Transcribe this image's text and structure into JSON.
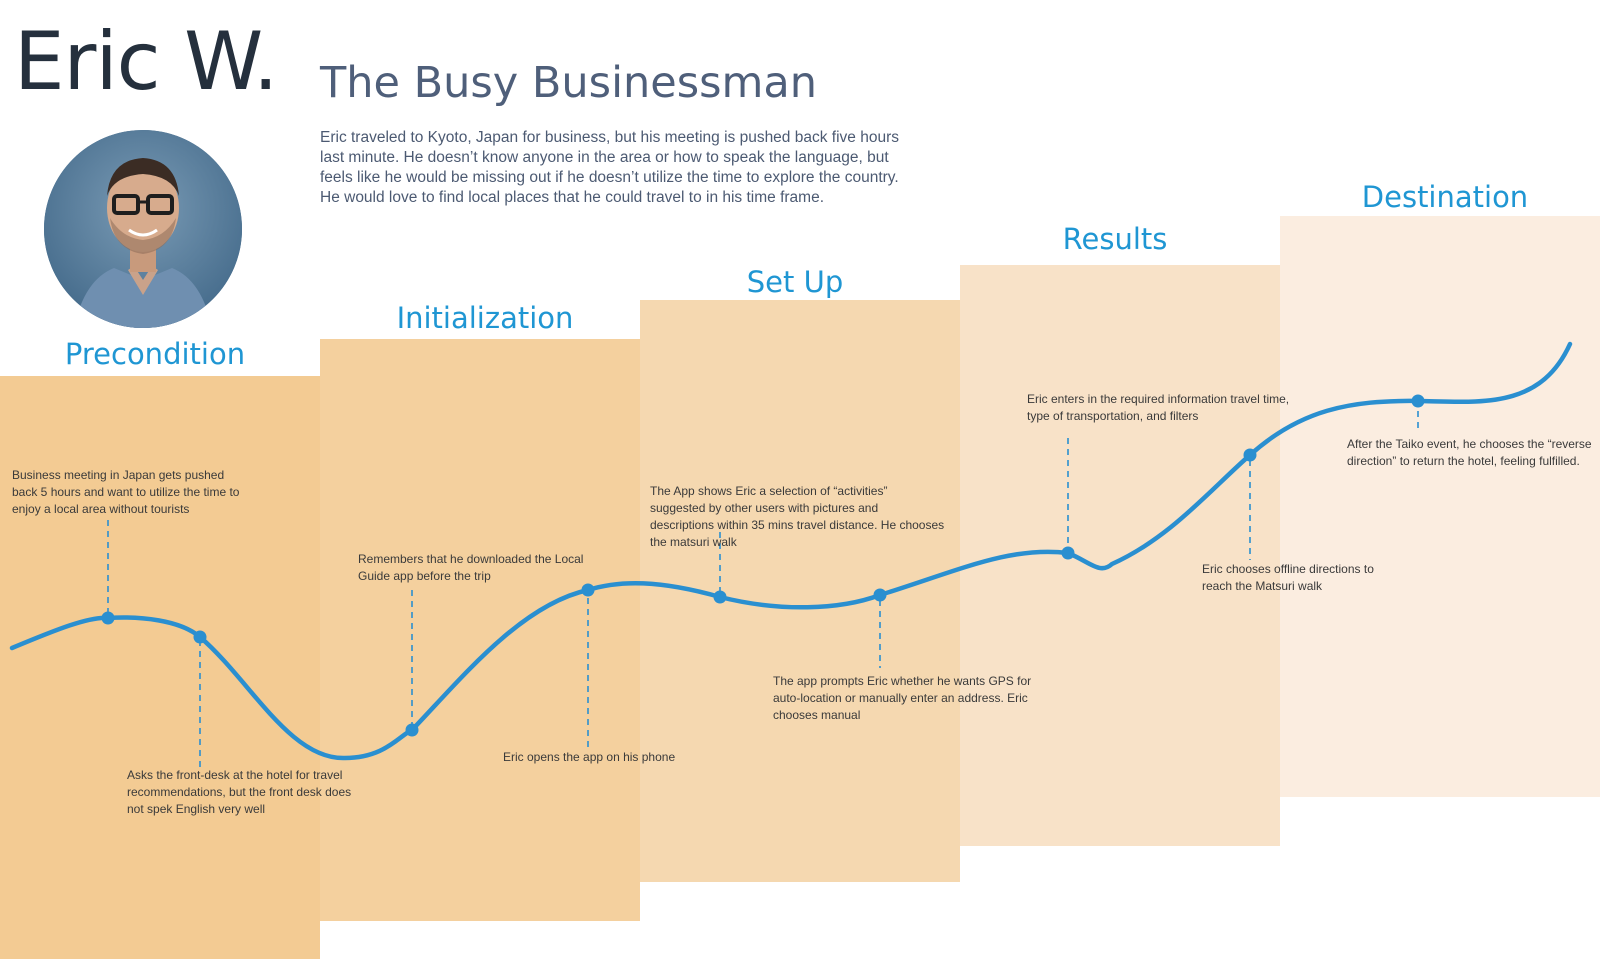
{
  "persona": {
    "name": "Eric W.",
    "title": "The Busy Businessman",
    "description": "Eric traveled to Kyoto, Japan for business, but his meeting is pushed back five hours last minute. He doesn’t know anyone in the area or how to speak the language, but feels like he would be missing out if he doesn’t utilize the time to explore the country. He would love to find local places that he could travel to in his time frame."
  },
  "stages": [
    {
      "label": "Precondition",
      "color": "#f3cb93"
    },
    {
      "label": "Initialization",
      "color": "#f4d09e"
    },
    {
      "label": "Set Up",
      "color": "#f5d8b0"
    },
    {
      "label": "Results",
      "color": "#f8e2c8"
    },
    {
      "label": "Destination",
      "color": "#fbede0"
    }
  ],
  "events": [
    "Business meeting in Japan gets pushed back 5 hours and want to utilize the time to enjoy a local area without tourists",
    "Asks the front-desk at the hotel for travel recommendations, but the front desk does not spek English very well",
    "Remembers that he downloaded the Local Guide app before  the trip",
    "Eric opens the app on his phone",
    "The App shows Eric a selection of “activities” suggested by other users with pictures and descriptions within 35 mins travel distance. He chooses the matsuri walk",
    "The app prompts Eric whether he wants GPS for auto-location or manually enter an address. Eric chooses manual",
    "Eric enters in the required information travel time, type of transportation, and filters",
    "Eric chooses offline directions to reach the Matsuri walk",
    "After the Taiko event, he chooses the “reverse direction” to return the hotel, feeling fulfilled."
  ],
  "colors": {
    "accent": "#1f96d3",
    "curve": "#2a8fd0"
  }
}
